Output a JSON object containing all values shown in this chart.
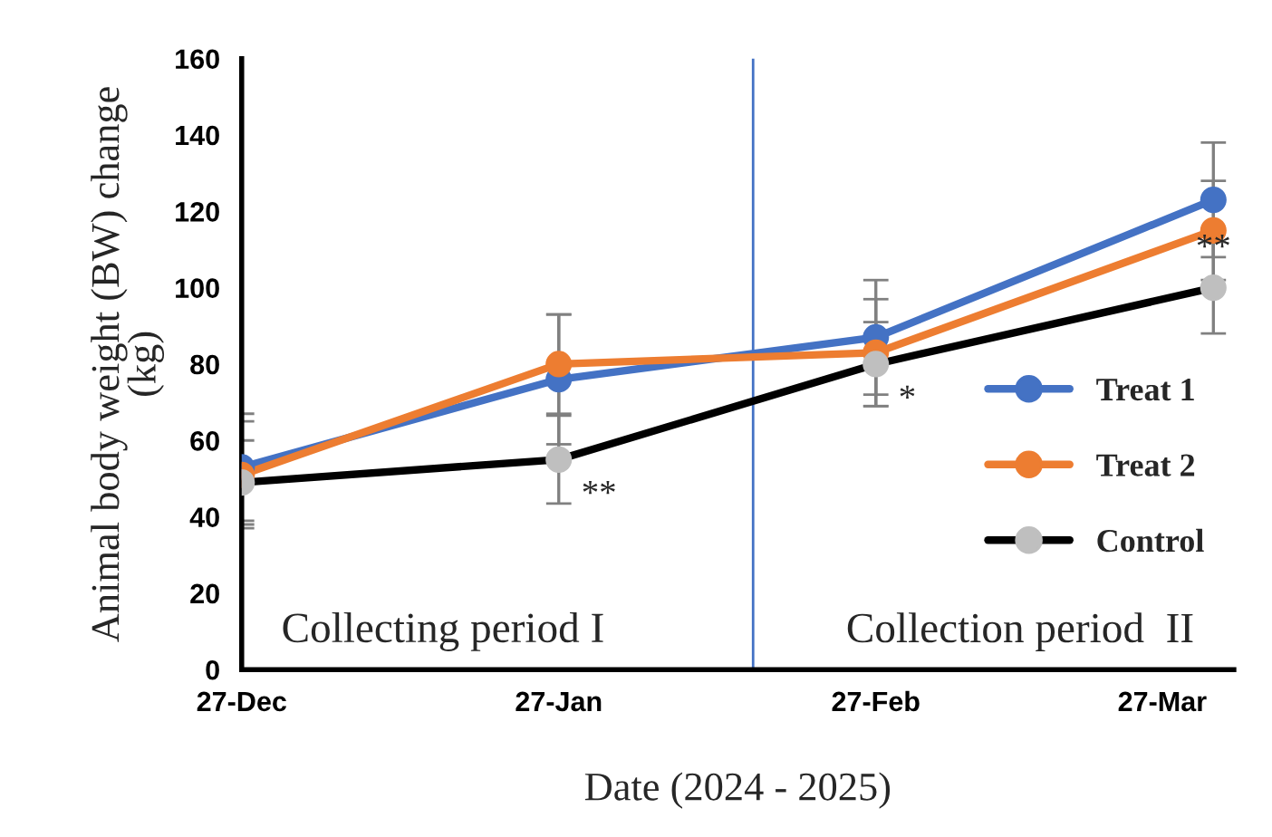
{
  "chart_data": {
    "type": "line",
    "xlabel": "Date (2024 - 2025)",
    "ylabel": "Animal body weight (BW) change\n(kg)",
    "x": [
      "2024-12-27",
      "2025-01-27",
      "2025-02-27",
      "2025-04-01"
    ],
    "series": [
      {
        "name": "Treat 1",
        "color": "#4472c4",
        "values": [
          53,
          76,
          87,
          123
        ],
        "errors": [
          14,
          17,
          15,
          15
        ]
      },
      {
        "name": "Treat 2",
        "color": "#ed7d31",
        "values": [
          51,
          80,
          83,
          115
        ],
        "errors": [
          14,
          13,
          14,
          13
        ]
      },
      {
        "name": "Control",
        "color": "#000000",
        "colors": [
          "#bfbfbf",
          "#bfbfbf",
          "#bfbfbf",
          "#bfbfbf"
        ],
        "values": [
          49,
          55,
          80,
          100
        ],
        "errors": [
          11,
          11.5,
          11,
          12
        ]
      }
    ],
    "xlim": [
      "2024-12-27",
      "2025-04-03"
    ],
    "xticks": [
      {
        "value": "2024-12-27",
        "label": "27-Dec"
      },
      {
        "value": "2025-01-27",
        "label": "27-Jan"
      },
      {
        "value": "2025-02-27",
        "label": "27-Feb"
      },
      {
        "value": "2025-03-27",
        "label": "27-Mar"
      }
    ],
    "ylim": [
      0,
      160
    ],
    "yticks": [
      0,
      20,
      40,
      60,
      80,
      100,
      120,
      140,
      160
    ],
    "ref_lines": [
      {
        "axis": "x",
        "value": "2025-02-15",
        "color": "#4472c4"
      }
    ],
    "annotations": [
      {
        "text": "**",
        "x": "2025-01-27",
        "y": 55
      },
      {
        "text": "*",
        "x": "2025-02-27",
        "y": 80
      },
      {
        "text": "**",
        "x": "2025-04-01",
        "y": 100
      },
      "Collecting period I",
      "Collection period  II"
    ],
    "grid": false,
    "legend": "right",
    "marker": "circle",
    "line_style": "solid"
  }
}
